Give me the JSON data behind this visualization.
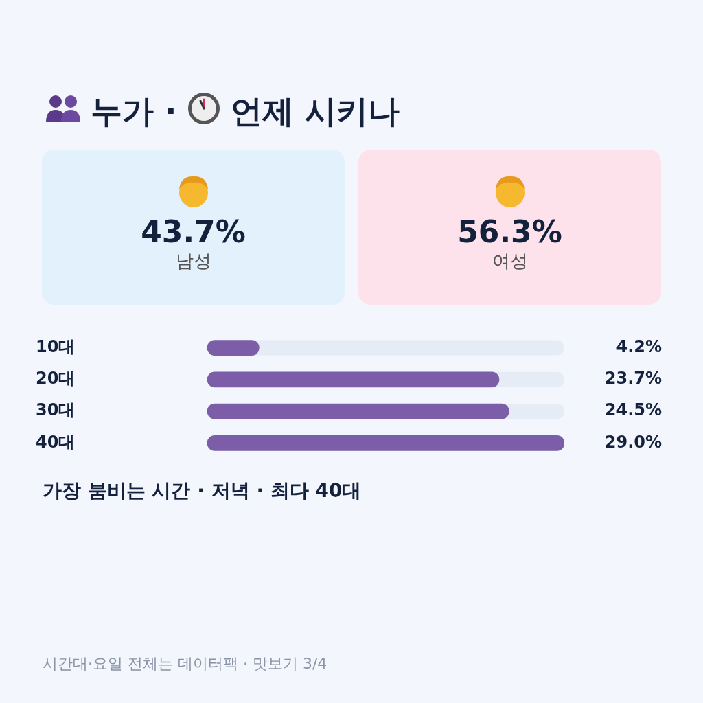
{
  "chart_data": [
    {
      "type": "other",
      "title": "누가 · 언제 시키나",
      "annotations": [
        "43.7%",
        "남성",
        "56.3%",
        "여성"
      ]
    },
    {
      "type": "bar",
      "orientation": "horizontal",
      "categories": [
        "10대",
        "20대",
        "30대",
        "40대"
      ],
      "values": [
        4.2,
        23.7,
        24.5,
        29.0
      ],
      "color": "#7b5ea7",
      "value_labels": [
        "4.2%",
        "23.7%",
        "24.5%",
        "29.0%"
      ],
      "xlim": [
        0,
        29.0
      ],
      "tick_labels": "y",
      "annotations": [
        "가장 붐비는 시간 · 저녁 · 최다 40대",
        "시간대·요일 전체는 데이터팩 · 맛보기 3/4"
      ]
    }
  ]
}
